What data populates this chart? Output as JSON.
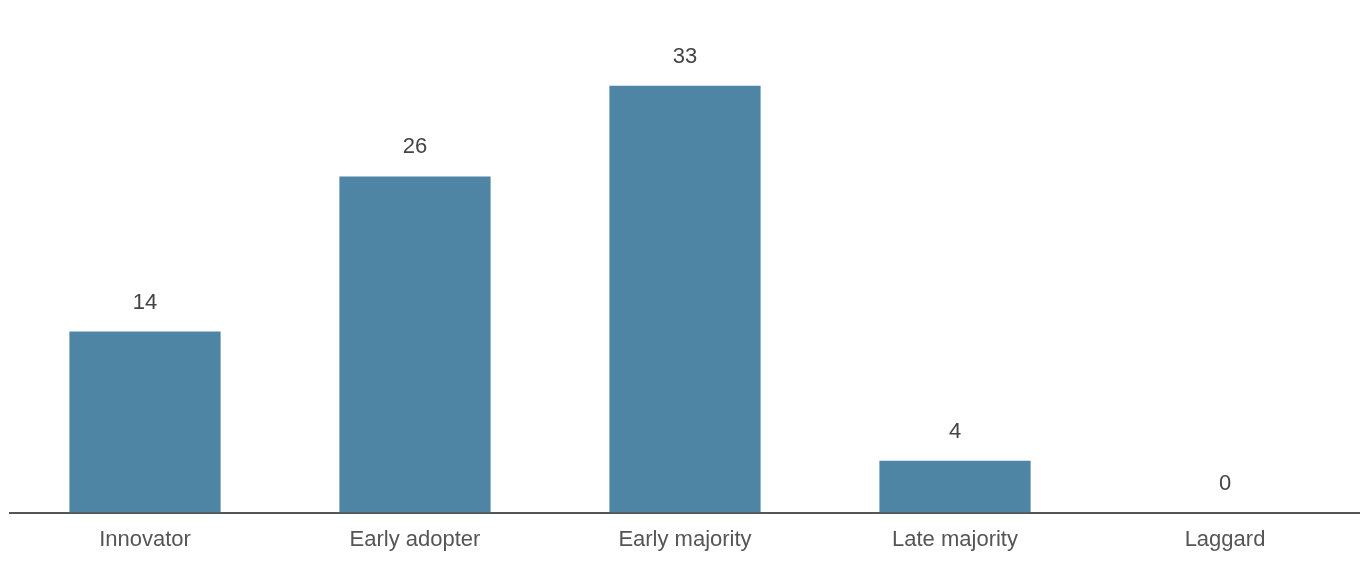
{
  "chart_data": {
    "type": "bar",
    "categories": [
      "Innovator",
      "Early adopter",
      "Early majority",
      "Late majority",
      "Laggard"
    ],
    "values": [
      14,
      26,
      33,
      4,
      0
    ],
    "color": "#4e84a4",
    "data_labels": true,
    "grid": false,
    "legend": false
  }
}
